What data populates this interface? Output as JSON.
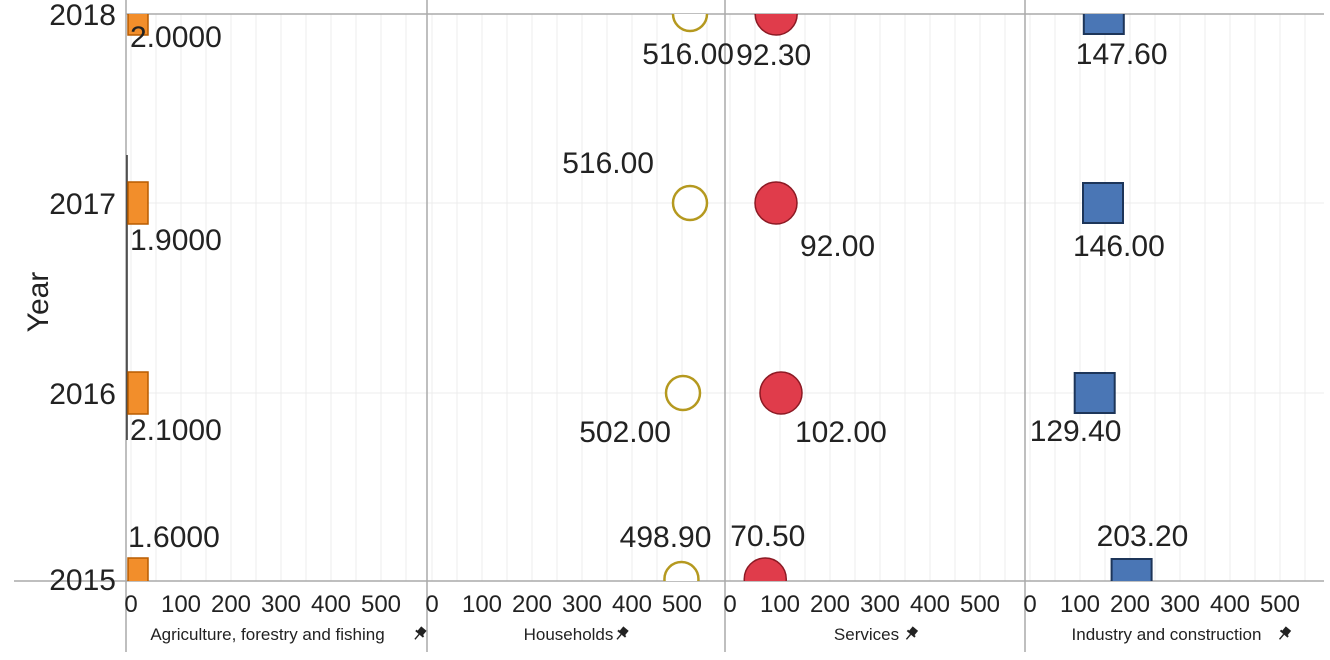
{
  "chart_data": {
    "type": "scatter",
    "ylabel": "Year",
    "years": [
      "2015",
      "2016",
      "2017",
      "2018"
    ],
    "x_ticks": [
      0,
      100,
      200,
      300,
      400,
      500
    ],
    "xlim": [
      0,
      580
    ],
    "grid": true,
    "legend": "none",
    "facets": [
      {
        "name": "Agriculture, forestry and fishing",
        "marker": "bar",
        "color": "#f28e2b",
        "stroke": "#b85c00",
        "values": [
          1.6,
          2.1,
          1.9,
          2.0
        ],
        "labels": [
          "1.6000",
          "2.1000",
          "1.9000",
          "2.0000"
        ]
      },
      {
        "name": "Households",
        "marker": "open-circle",
        "color": "#ffffff",
        "stroke": "#b5991f",
        "values": [
          498.9,
          502.0,
          516.0,
          516.0
        ],
        "labels": [
          "498.90",
          "502.00",
          "516.00",
          "516.00"
        ]
      },
      {
        "name": "Services",
        "marker": "circle",
        "color": "#e03c4b",
        "stroke": "#8c1a24",
        "values": [
          70.5,
          102.0,
          92.0,
          92.3
        ],
        "labels": [
          "70.50",
          "102.00",
          "92.00",
          "92.30"
        ]
      },
      {
        "name": "Industry and construction",
        "marker": "square",
        "color": "#4a76b5",
        "stroke": "#1d3559",
        "values": [
          203.2,
          129.4,
          146.0,
          147.6
        ],
        "labels": [
          "203.20",
          "129.40",
          "146.00",
          "147.60"
        ]
      }
    ],
    "pin_icon": "pin-icon"
  }
}
